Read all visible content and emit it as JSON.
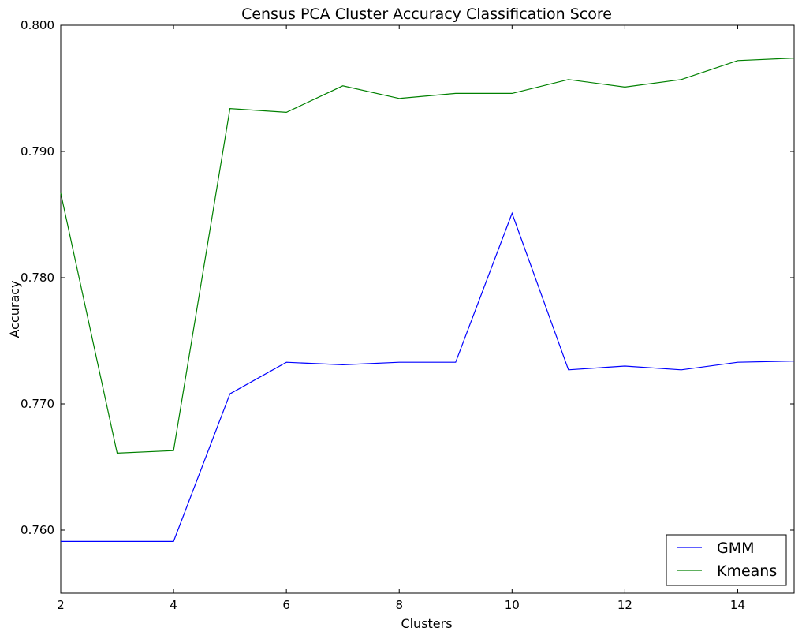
{
  "chart_data": {
    "type": "line",
    "title": "Census PCA Cluster Accuracy Classification Score",
    "xlabel": "Clusters",
    "ylabel": "Accuracy",
    "xlim": [
      2,
      15
    ],
    "ylim": [
      0.755,
      0.8
    ],
    "xticks": [
      2,
      4,
      6,
      8,
      10,
      12,
      14
    ],
    "yticks": [
      0.76,
      0.77,
      0.78,
      0.79,
      0.8
    ],
    "ytick_labels": [
      "0.760",
      "0.770",
      "0.780",
      "0.790",
      "0.800"
    ],
    "grid": false,
    "legend_position": "bottom-right",
    "x": [
      2,
      3,
      4,
      5,
      6,
      7,
      8,
      9,
      10,
      11,
      12,
      13,
      14,
      15
    ],
    "series": [
      {
        "name": "GMM",
        "color": "#0000ff",
        "values": [
          0.7591,
          0.7591,
          0.7591,
          0.7708,
          0.7733,
          0.7731,
          0.7733,
          0.7733,
          0.7851,
          0.7727,
          0.773,
          0.7727,
          0.7733,
          0.7734
        ]
      },
      {
        "name": "Kmeans",
        "color": "#008000",
        "values": [
          0.7867,
          0.7661,
          0.7663,
          0.7934,
          0.7931,
          0.7952,
          0.7942,
          0.7946,
          0.7946,
          0.7957,
          0.7951,
          0.7957,
          0.7972,
          0.7974
        ]
      }
    ]
  }
}
